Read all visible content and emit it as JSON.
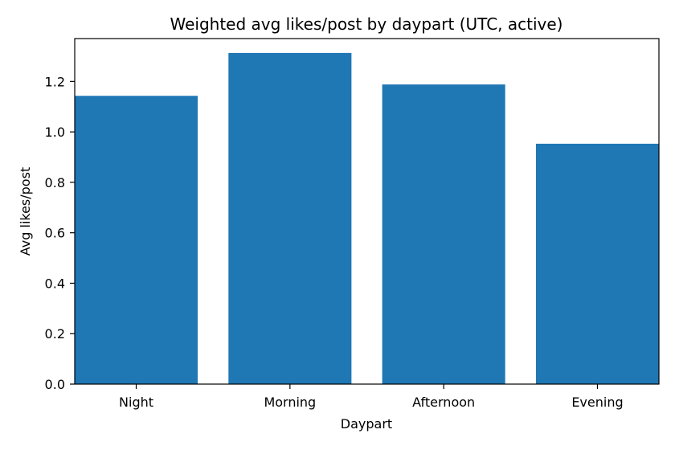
{
  "chart_data": {
    "type": "bar",
    "title": "Weighted avg likes/post by daypart (UTC, active)",
    "xlabel": "Daypart",
    "ylabel": "Avg likes/post",
    "categories": [
      "Night",
      "Morning",
      "Afternoon",
      "Evening"
    ],
    "values": [
      1.143,
      1.313,
      1.188,
      0.953
    ],
    "ylim": [
      0,
      1.37
    ],
    "yticks": [
      0.0,
      0.2,
      0.4,
      0.6,
      0.8,
      1.0,
      1.2
    ],
    "ytick_labels": [
      "0.0",
      "0.2",
      "0.4",
      "0.6",
      "0.8",
      "1.0",
      "1.2"
    ],
    "bar_color": "#1f77b4",
    "grid": false
  }
}
